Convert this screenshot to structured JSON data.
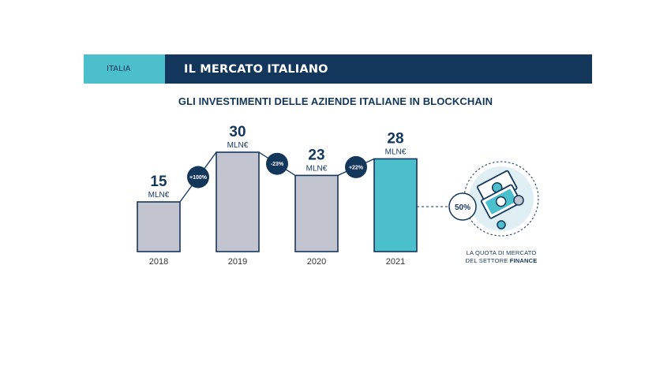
{
  "header": {
    "tag": "ITALIA",
    "title": "IL MERCATO ITALIANO"
  },
  "chart_title": "GLI INVESTIMENTI DELLE AZIENDE ITALIANE IN BLOCKCHAIN",
  "chart_data": {
    "type": "bar",
    "title": "GLI INVESTIMENTI DELLE AZIENDE ITALIANE IN BLOCKCHAIN",
    "categories": [
      "2018",
      "2019",
      "2020",
      "2021"
    ],
    "values": [
      15,
      30,
      23,
      28
    ],
    "value_labels": [
      "15",
      "30",
      "23",
      "28"
    ],
    "unit": "MLN€",
    "changes": [
      "+100%",
      "-23%",
      "+22%"
    ],
    "highlight_index": 3,
    "ylim": [
      0,
      30
    ],
    "colors": {
      "bar": "#c2c5cf",
      "highlight": "#4bbfcc",
      "outline": "#13365b",
      "badge": "#13365b"
    }
  },
  "finance": {
    "percent": "50%",
    "caption_line1": "LA QUOTA DI MERCATO",
    "caption_prefix": "DEL SETTORE ",
    "caption_bold": "FINANCE",
    "icon": "banknotes-icon"
  }
}
